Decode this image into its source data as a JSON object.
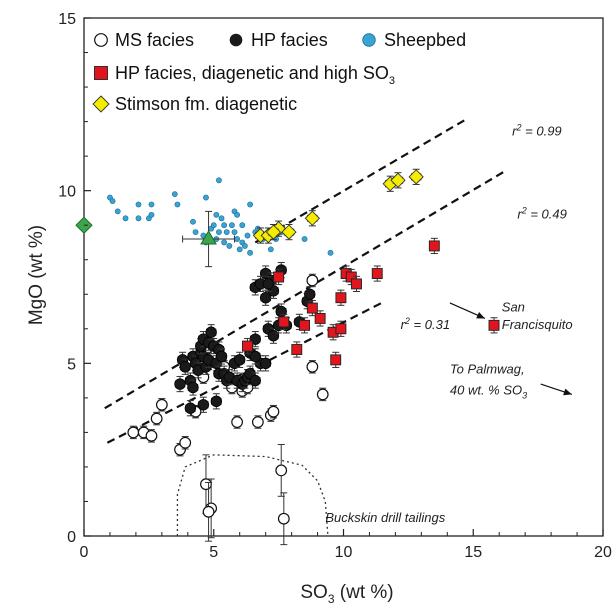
{
  "chart_data": {
    "type": "scatter",
    "xlabel": "SO3 (wt %)",
    "ylabel": "MgO (wt %)",
    "xlim": [
      0,
      20
    ],
    "ylim": [
      0,
      15
    ],
    "xticks": [
      0,
      5,
      10,
      15,
      20
    ],
    "yticks": [
      0,
      5,
      10,
      15
    ],
    "grid": false,
    "legend": {
      "placement": "top-left",
      "entries": [
        {
          "series": "ms",
          "label": "MS facies"
        },
        {
          "series": "hp",
          "label": "HP facies"
        },
        {
          "series": "sheepbed",
          "label": "Sheepbed"
        },
        {
          "series": "hp_diag",
          "label": "HP facies, diagenetic and high SO",
          "sub": "3"
        },
        {
          "series": "stimson",
          "label": "Stimson fm. diagenetic"
        }
      ]
    },
    "colors": {
      "ms_fill": "#ffffff",
      "hp_fill": "#1a1a1a",
      "sheepbed_fill": "#3aa3d4",
      "hp_diag_fill": "#e1151e",
      "stimson_fill": "#f5ec00",
      "triangle_fill": "#3aa54a",
      "green_diamond_fill": "#3aa54a"
    },
    "series": [
      {
        "name": "MS facies",
        "marker": "circle-open",
        "points": [
          [
            1.9,
            3.0
          ],
          [
            2.3,
            3.0
          ],
          [
            2.6,
            2.9
          ],
          [
            2.8,
            3.4
          ],
          [
            3.0,
            3.8
          ],
          [
            3.7,
            2.5
          ],
          [
            3.9,
            2.7
          ],
          [
            4.3,
            3.6
          ],
          [
            4.6,
            4.6
          ],
          [
            4.8,
            5.0
          ],
          [
            4.7,
            5.4
          ],
          [
            5.4,
            4.9
          ],
          [
            5.7,
            4.3
          ],
          [
            6.1,
            4.2
          ],
          [
            6.3,
            4.3
          ],
          [
            5.9,
            3.3
          ],
          [
            6.7,
            3.3
          ],
          [
            7.2,
            3.5
          ],
          [
            7.3,
            3.6
          ],
          [
            8.8,
            4.9
          ],
          [
            8.8,
            7.4
          ],
          [
            9.2,
            4.1
          ],
          [
            4.7,
            1.5
          ],
          [
            4.9,
            0.8
          ],
          [
            4.8,
            0.7
          ],
          [
            7.6,
            1.9
          ],
          [
            7.7,
            0.5
          ]
        ]
      },
      {
        "name": "HP facies",
        "marker": "circle-filled",
        "points": [
          [
            3.8,
            5.1
          ],
          [
            3.9,
            4.9
          ],
          [
            4.1,
            4.5
          ],
          [
            4.2,
            5.2
          ],
          [
            4.3,
            5.0
          ],
          [
            4.4,
            4.8
          ],
          [
            4.5,
            5.3
          ],
          [
            4.6,
            5.2
          ],
          [
            4.5,
            5.5
          ],
          [
            4.6,
            5.7
          ],
          [
            4.7,
            4.9
          ],
          [
            4.8,
            5.1
          ],
          [
            4.8,
            5.6
          ],
          [
            4.9,
            5.9
          ],
          [
            5.0,
            5.5
          ],
          [
            5.1,
            5.0
          ],
          [
            5.2,
            4.7
          ],
          [
            5.2,
            5.4
          ],
          [
            5.3,
            5.2
          ],
          [
            5.4,
            4.7
          ],
          [
            5.5,
            4.5
          ],
          [
            5.6,
            4.6
          ],
          [
            5.8,
            5.0
          ],
          [
            5.9,
            4.5
          ],
          [
            6.0,
            5.1
          ],
          [
            6.1,
            4.4
          ],
          [
            6.2,
            4.5
          ],
          [
            6.3,
            4.6
          ],
          [
            6.4,
            4.7
          ],
          [
            6.6,
            4.5
          ],
          [
            6.8,
            5.0
          ],
          [
            6.4,
            5.3
          ],
          [
            6.6,
            5.2
          ],
          [
            6.6,
            5.7
          ],
          [
            7.0,
            5.0
          ],
          [
            7.1,
            6.0
          ],
          [
            7.3,
            5.8
          ],
          [
            7.5,
            6.1
          ],
          [
            7.6,
            6.5
          ],
          [
            7.8,
            6.1
          ],
          [
            8.3,
            6.2
          ],
          [
            8.6,
            6.8
          ],
          [
            8.7,
            7.0
          ],
          [
            7.0,
            7.6
          ],
          [
            7.2,
            7.4
          ],
          [
            6.6,
            7.2
          ],
          [
            6.8,
            7.3
          ],
          [
            7.0,
            6.9
          ],
          [
            7.3,
            7.1
          ],
          [
            7.6,
            7.7
          ],
          [
            7.1,
            7.3
          ],
          [
            4.6,
            3.8
          ],
          [
            4.1,
            3.7
          ],
          [
            5.1,
            3.9
          ],
          [
            3.7,
            4.4
          ],
          [
            4.2,
            4.3
          ]
        ]
      },
      {
        "name": "Sheepbed",
        "marker": "dot",
        "points": [
          [
            1.0,
            9.8
          ],
          [
            1.1,
            9.7
          ],
          [
            1.3,
            9.4
          ],
          [
            1.6,
            9.2
          ],
          [
            2.1,
            9.2
          ],
          [
            2.1,
            9.6
          ],
          [
            2.5,
            9.2
          ],
          [
            2.6,
            9.3
          ],
          [
            2.6,
            9.6
          ],
          [
            3.5,
            9.9
          ],
          [
            3.6,
            9.6
          ],
          [
            4.2,
            9.1
          ],
          [
            4.3,
            8.8
          ],
          [
            4.6,
            8.7
          ],
          [
            4.7,
            8.5
          ],
          [
            4.9,
            8.9
          ],
          [
            5.0,
            9.0
          ],
          [
            5.1,
            9.3
          ],
          [
            5.1,
            8.6
          ],
          [
            5.2,
            8.8
          ],
          [
            5.2,
            10.3
          ],
          [
            5.3,
            9.2
          ],
          [
            5.4,
            9.0
          ],
          [
            5.4,
            8.5
          ],
          [
            5.5,
            8.8
          ],
          [
            5.6,
            8.4
          ],
          [
            5.7,
            9.0
          ],
          [
            5.8,
            9.4
          ],
          [
            5.8,
            8.8
          ],
          [
            5.9,
            8.6
          ],
          [
            5.9,
            9.3
          ],
          [
            6.0,
            8.3
          ],
          [
            6.1,
            8.5
          ],
          [
            6.1,
            9.0
          ],
          [
            6.2,
            8.4
          ],
          [
            6.3,
            8.7
          ],
          [
            6.4,
            8.2
          ],
          [
            6.4,
            9.6
          ],
          [
            6.6,
            8.8
          ],
          [
            6.7,
            8.9
          ],
          [
            6.9,
            8.6
          ],
          [
            7.2,
            8.3
          ],
          [
            7.4,
            8.6
          ],
          [
            7.6,
            8.8
          ],
          [
            8.5,
            8.6
          ],
          [
            9.5,
            8.2
          ],
          [
            4.7,
            9.8
          ]
        ]
      },
      {
        "name": "HP facies, diagenetic and high SO3",
        "marker": "square",
        "points": [
          [
            6.3,
            5.5
          ],
          [
            7.5,
            7.5
          ],
          [
            7.7,
            6.2
          ],
          [
            8.2,
            5.4
          ],
          [
            8.5,
            6.1
          ],
          [
            8.8,
            6.6
          ],
          [
            9.1,
            6.3
          ],
          [
            9.6,
            5.9
          ],
          [
            9.7,
            5.1
          ],
          [
            9.9,
            6.9
          ],
          [
            10.1,
            7.6
          ],
          [
            10.3,
            7.5
          ],
          [
            10.5,
            7.3
          ],
          [
            11.3,
            7.6
          ],
          [
            13.5,
            8.4
          ],
          [
            15.8,
            6.1
          ],
          [
            9.9,
            6.0
          ]
        ]
      },
      {
        "name": "Stimson fm. diagenetic",
        "marker": "diamond",
        "points": [
          [
            6.8,
            8.7
          ],
          [
            7.1,
            8.7
          ],
          [
            7.5,
            8.9
          ],
          [
            7.9,
            8.8
          ],
          [
            8.8,
            9.2
          ],
          [
            11.8,
            10.2
          ],
          [
            12.1,
            10.3
          ],
          [
            12.8,
            10.4
          ],
          [
            7.3,
            8.8
          ]
        ]
      },
      {
        "name": "",
        "marker": "triangle",
        "points": [
          [
            4.8,
            8.6
          ]
        ]
      },
      {
        "name": "",
        "marker": "green-diamond",
        "points": [
          [
            0.0,
            9.0
          ]
        ]
      }
    ],
    "trendlines": [
      {
        "label": "r² = 0.99",
        "r2_text": "= 0.99",
        "x": [
          6.6,
          14.8
        ],
        "y": [
          8.5,
          12.1
        ],
        "label_at": [
          16.5,
          11.6
        ]
      },
      {
        "label": "r² = 0.49",
        "r2_text": "= 0.49",
        "x": [
          0.8,
          16.3
        ],
        "y": [
          3.7,
          10.6
        ],
        "label_at": [
          16.7,
          9.2
        ]
      },
      {
        "label": "r² = 0.31",
        "r2_text": "= 0.31",
        "x": [
          0.9,
          11.6
        ],
        "y": [
          2.7,
          6.8
        ],
        "label_at": [
          12.2,
          6.0
        ]
      }
    ],
    "annotations": [
      {
        "text": "San",
        "at": [
          16.1,
          6.5
        ]
      },
      {
        "text": "Francisquito",
        "at": [
          16.1,
          6.0
        ]
      },
      {
        "text": "To Palmwag,",
        "at": [
          14.1,
          4.7
        ]
      },
      {
        "text": "40 wt. % SO",
        "sub": "3",
        "at": [
          14.1,
          4.1
        ]
      },
      {
        "text": "Buckskin drill tailings",
        "at": [
          9.3,
          0.4
        ]
      }
    ]
  }
}
